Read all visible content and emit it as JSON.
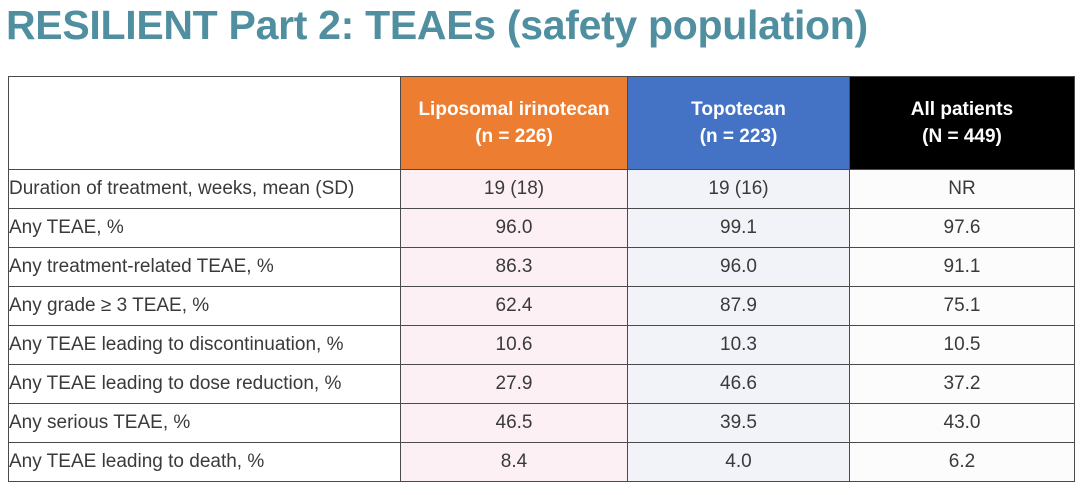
{
  "title": "RESILIENT Part 2: TEAEs (safety population)",
  "colors": {
    "title": "#4f8fa0",
    "liposomal_header": "#ed7d31",
    "topotecan_header": "#4472c4",
    "all_patients_header": "#000000"
  },
  "table": {
    "columns": [
      {
        "name": "Liposomal irinotecan",
        "n": "(n = 226)"
      },
      {
        "name": "Topotecan",
        "n": "(n = 223)"
      },
      {
        "name": "All patients",
        "n": "(N = 449)"
      }
    ],
    "rows": [
      {
        "label": "Duration of treatment, weeks, mean (SD)",
        "values": [
          "19 (18)",
          "19 (16)",
          "NR"
        ]
      },
      {
        "label": "Any TEAE, %",
        "values": [
          "96.0",
          "99.1",
          "97.6"
        ]
      },
      {
        "label": "Any treatment-related TEAE, %",
        "values": [
          "86.3",
          "96.0",
          "91.1"
        ]
      },
      {
        "label": "Any grade ≥ 3 TEAE, %",
        "values": [
          "62.4",
          "87.9",
          "75.1"
        ]
      },
      {
        "label": "Any TEAE leading to discontinuation, %",
        "values": [
          "10.6",
          "10.3",
          "10.5"
        ]
      },
      {
        "label": "Any TEAE leading to dose reduction, %",
        "values": [
          "27.9",
          "46.6",
          "37.2"
        ]
      },
      {
        "label": "Any serious TEAE, %",
        "values": [
          "46.5",
          "39.5",
          "43.0"
        ]
      },
      {
        "label": "Any TEAE leading to death, %",
        "values": [
          "8.4",
          "4.0",
          "6.2"
        ]
      }
    ]
  }
}
